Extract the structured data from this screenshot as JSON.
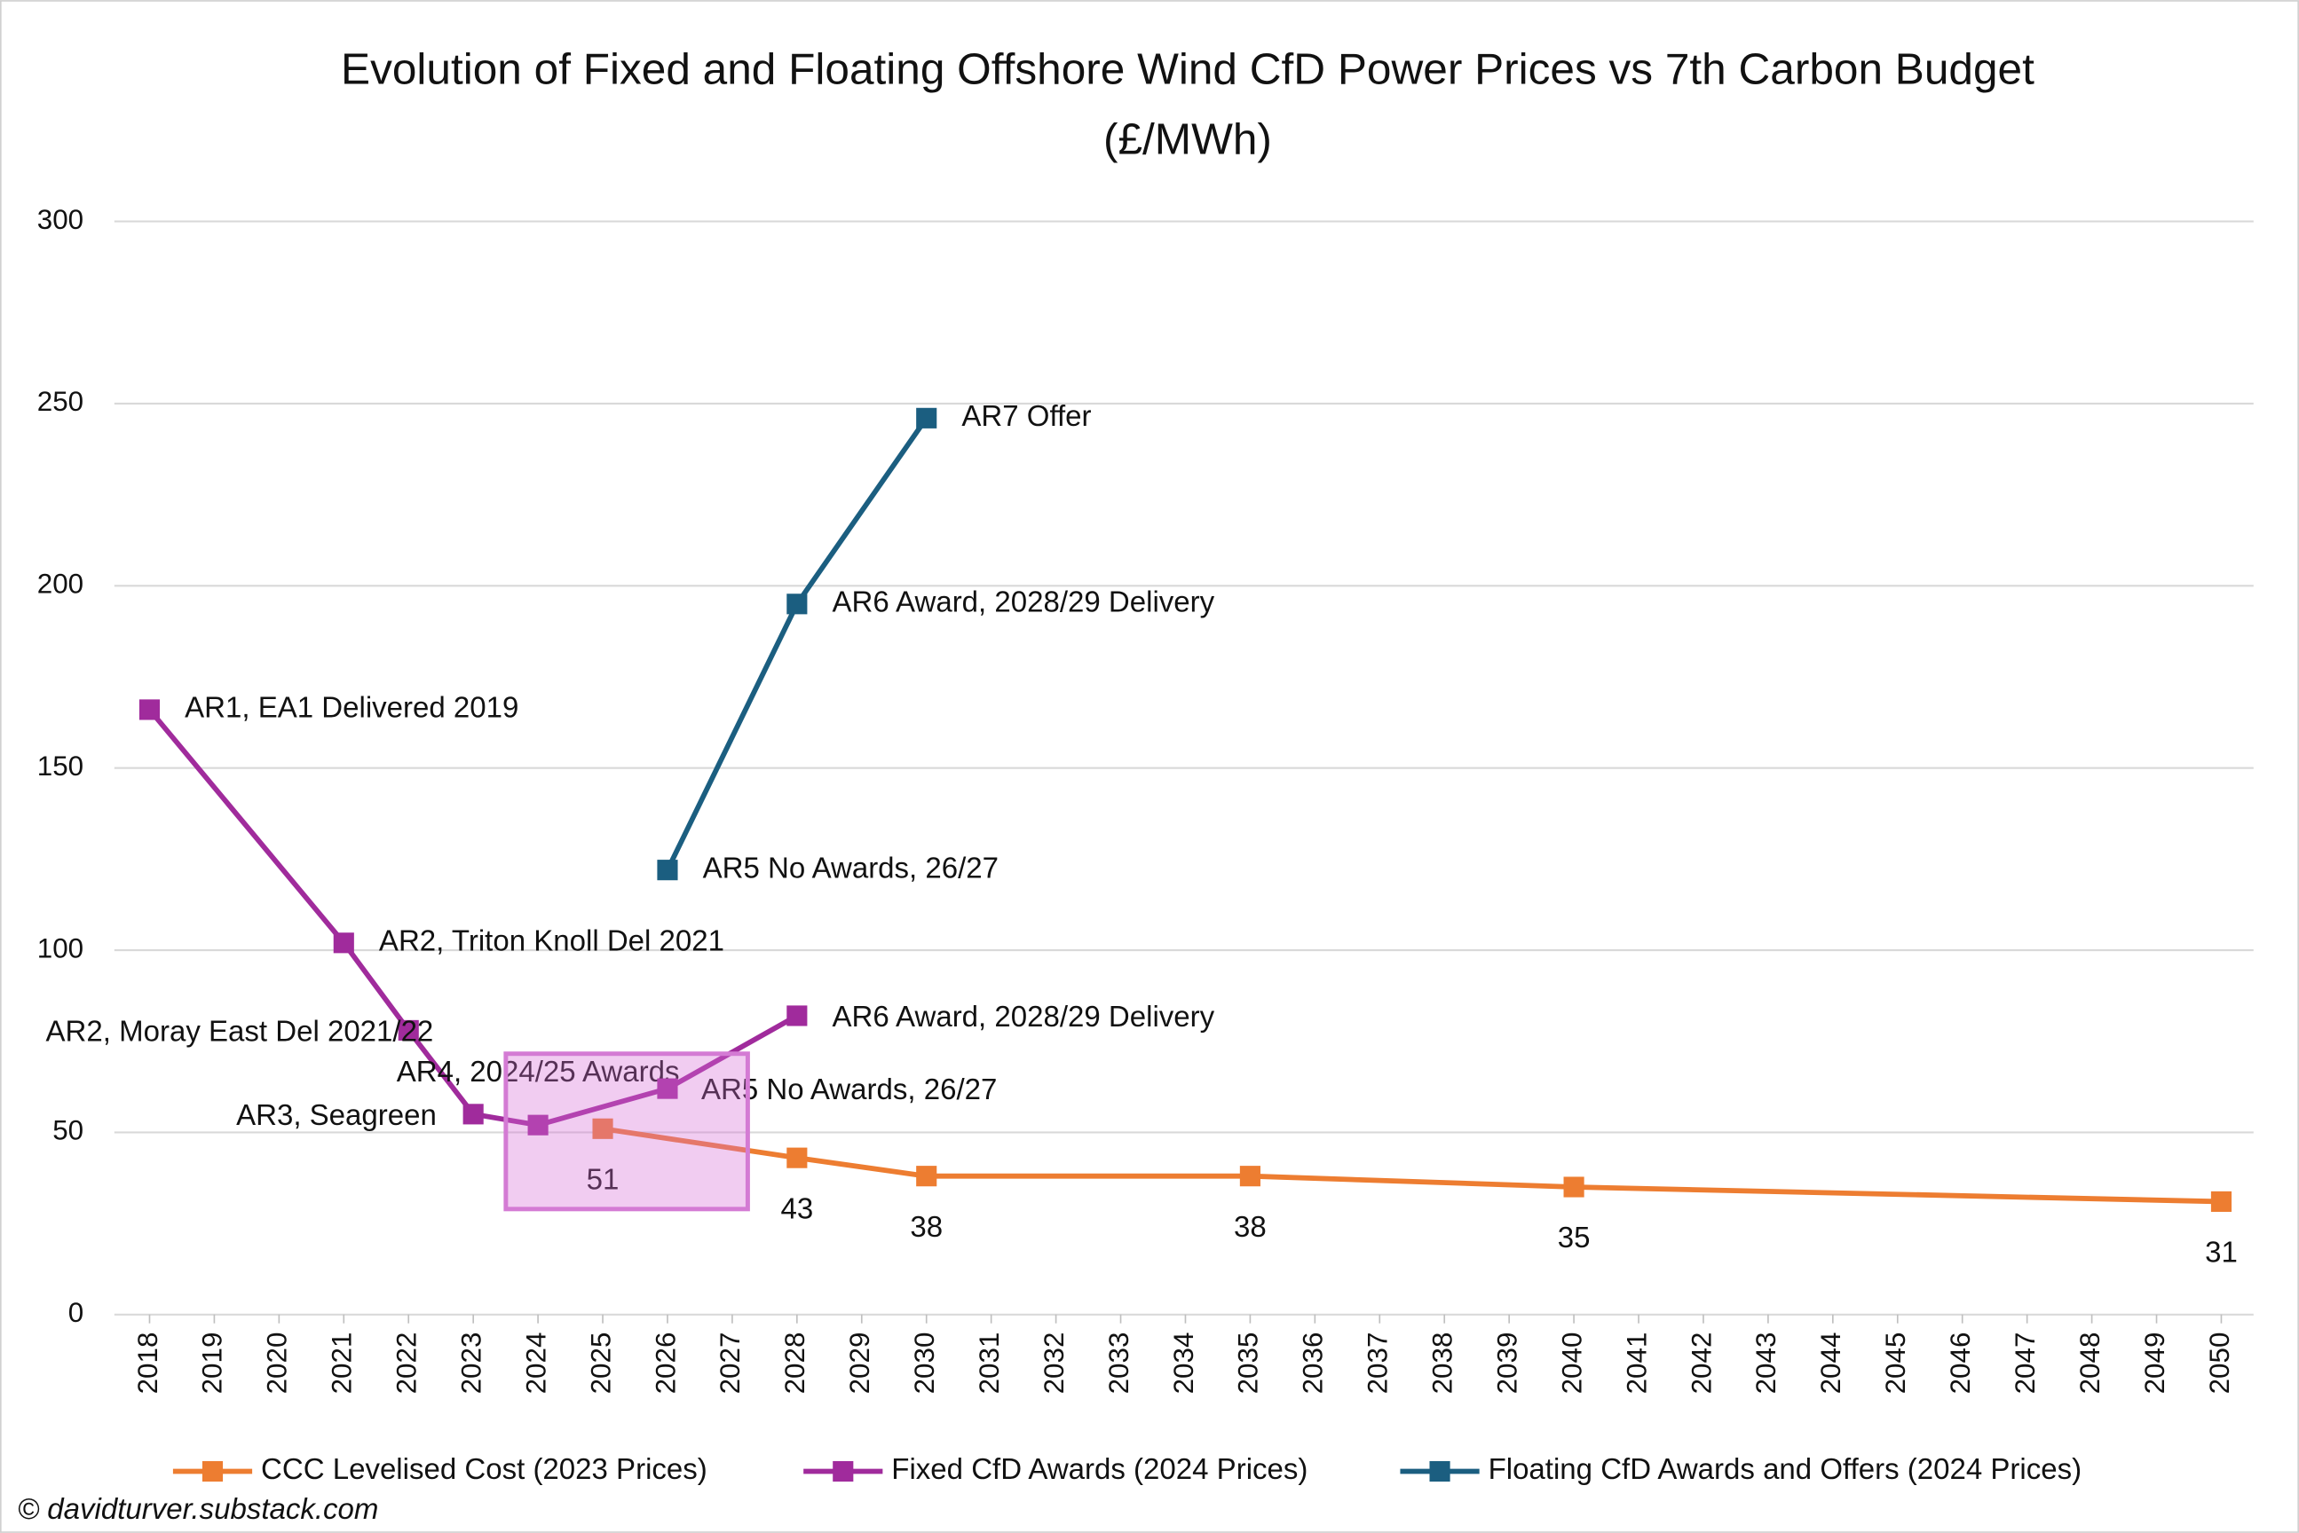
{
  "chart_data": {
    "type": "line",
    "title": "Evolution of Fixed and Floating Offshore Wind CfD Power Prices vs 7th Carbon Budget (£/MWh)",
    "source": "© davidturver.substack.com",
    "xlim": [
      2018,
      2050
    ],
    "xticks": [
      2018,
      2019,
      2020,
      2021,
      2022,
      2023,
      2024,
      2025,
      2026,
      2027,
      2028,
      2029,
      2030,
      2031,
      2032,
      2033,
      2034,
      2035,
      2036,
      2037,
      2038,
      2039,
      2040,
      2041,
      2042,
      2043,
      2044,
      2045,
      2046,
      2047,
      2048,
      2049,
      2050
    ],
    "ylim": [
      0,
      300
    ],
    "yticks": [
      0,
      50,
      100,
      150,
      200,
      250,
      300
    ],
    "grid": true,
    "legend": "bottom",
    "series": [
      {
        "name": "CCC Levelised Cost (2023 Prices)",
        "color": "#ed7d31",
        "x": [
          2025,
          2028,
          2030,
          2035,
          2040,
          2050
        ],
        "values": [
          51,
          43,
          38,
          38,
          35,
          31
        ],
        "show_values": true
      },
      {
        "name": "Fixed CfD Awards (2024 Prices)",
        "color": "#a02b9c",
        "x": [
          2018,
          2021,
          2022,
          2023,
          2024,
          2026,
          2028
        ],
        "values": [
          166,
          102,
          78,
          55,
          52,
          62,
          82
        ],
        "labels": [
          "AR1, EA1 Delivered 2019",
          "AR2, Triton Knoll Del 2021",
          "AR2, Moray East Del 2021/22",
          "AR3, Seagreen",
          "AR4, 2024/25 Awards",
          "AR5 No Awards, 26/27",
          "AR6 Award, 2028/29 Delivery"
        ]
      },
      {
        "name": "Floating CfD Awards and Offers (2024 Prices)",
        "color": "#1b5e80",
        "x": [
          2026,
          2028,
          2030
        ],
        "values": [
          122,
          195,
          246
        ],
        "labels": [
          "AR5 No Awards, 26/27",
          "AR6 Award, 2028/29 Delivery",
          "AR7 Offer"
        ]
      }
    ]
  }
}
